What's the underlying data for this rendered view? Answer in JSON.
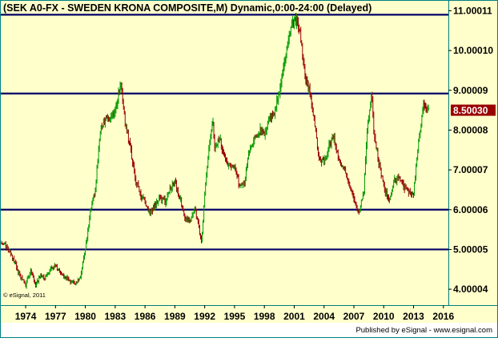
{
  "title": "(SEK A0-FX - SWEDEN KRONA COMPOSITE,M) Dynamic,0:00-24:00 (Delayed)",
  "copyright": "© eSignal, 2011",
  "footer": "Published by eSignal - www.esignal.com",
  "colors": {
    "background": "#ffffcc",
    "frame": "#008080",
    "horizontal_lines": "#000066",
    "up_bar": "#009900",
    "down_bar": "#990000",
    "price_label_bg": "#990000",
    "price_label_text": "#ffffff",
    "text": "#000000"
  },
  "chart_data": {
    "type": "line",
    "style": "ohlc-bars",
    "title": "(SEK A0-FX - SWEDEN KRONA COMPOSITE,M) Dynamic,0:00-24:00 (Delayed)",
    "xlim": [
      1971.5,
      2016.5
    ],
    "ylim": [
      3.6,
      11.25
    ],
    "x_ticks": [
      "1974",
      "1977",
      "1980",
      "1983",
      "1986",
      "1989",
      "1992",
      "1995",
      "1998",
      "2001",
      "2004",
      "2007",
      "2010",
      "2013",
      "2016"
    ],
    "y_ticks": [
      {
        "value": 11.00011,
        "label": "11.00011"
      },
      {
        "value": 10.0001,
        "label": "10.00010"
      },
      {
        "value": 9.00009,
        "label": "9.00009"
      },
      {
        "value": 8.00008,
        "label": "8.00008"
      },
      {
        "value": 7.00007,
        "label": "7.00007"
      },
      {
        "value": 6.00006,
        "label": "6.00006"
      },
      {
        "value": 5.00005,
        "label": "5.00005"
      },
      {
        "value": 4.00004,
        "label": "4.00004"
      }
    ],
    "horizontal_lines": [
      10.9,
      8.92,
      6.0,
      5.0
    ],
    "last_price": {
      "value": 8.5003,
      "label": "8.50030"
    },
    "series": [
      {
        "x": [
          1971.5,
          1972.0,
          1972.5,
          1973.0,
          1973.5,
          1974.0,
          1974.5,
          1975.0,
          1975.5,
          1976.0,
          1976.5,
          1977.0,
          1977.5,
          1978.0,
          1978.5,
          1979.0,
          1979.5,
          1980.0,
          1980.5,
          1981.0,
          1981.5,
          1982.0,
          1982.5,
          1983.0,
          1983.6,
          1984.0,
          1984.5,
          1985.0,
          1985.5,
          1986.0,
          1986.5,
          1987.0,
          1987.5,
          1988.0,
          1988.5,
          1989.0,
          1989.5,
          1990.0,
          1990.5,
          1991.0,
          1991.3,
          1991.7,
          1992.0,
          1992.4,
          1992.8,
          1993.0,
          1993.5,
          1994.0,
          1994.5,
          1995.0,
          1995.5,
          1996.0,
          1996.5,
          1997.0,
          1997.5,
          1998.0,
          1998.5,
          1999.0,
          1999.5,
          2000.0,
          2000.5,
          2001.0,
          2001.5,
          2002.0,
          2002.5,
          2003.0,
          2003.5,
          2004.0,
          2004.5,
          2005.0,
          2005.5,
          2006.0,
          2006.5,
          2007.0,
          2007.5,
          2008.0,
          2008.4,
          2008.8,
          2009.0,
          2009.5,
          2010.0,
          2010.5,
          2011.0,
          2011.5,
          2012.0,
          2012.5,
          2013.0,
          2013.5,
          2014.0,
          2014.3,
          2014.5
        ],
        "y": [
          5.15,
          5.1,
          4.9,
          4.6,
          4.3,
          4.1,
          4.5,
          4.1,
          4.35,
          4.3,
          4.5,
          4.6,
          4.4,
          4.3,
          4.2,
          4.15,
          4.3,
          5.0,
          6.0,
          6.5,
          8.0,
          8.3,
          8.3,
          8.5,
          9.2,
          8.2,
          7.6,
          6.8,
          6.4,
          6.2,
          5.9,
          6.1,
          6.3,
          6.2,
          6.5,
          6.7,
          6.3,
          5.8,
          5.7,
          6.0,
          5.7,
          5.2,
          6.4,
          7.5,
          8.3,
          7.5,
          7.8,
          7.3,
          7.1,
          7.1,
          6.6,
          6.7,
          7.5,
          7.8,
          8.0,
          7.9,
          8.3,
          8.4,
          9.0,
          9.6,
          10.4,
          10.8,
          10.6,
          9.5,
          9.0,
          8.3,
          7.3,
          7.2,
          7.6,
          7.8,
          7.2,
          7.1,
          6.7,
          6.3,
          5.9,
          6.5,
          8.2,
          8.9,
          8.0,
          7.2,
          6.6,
          6.2,
          6.7,
          6.8,
          6.6,
          6.4,
          6.4,
          7.7,
          8.6,
          8.5,
          8.5
        ]
      }
    ]
  }
}
